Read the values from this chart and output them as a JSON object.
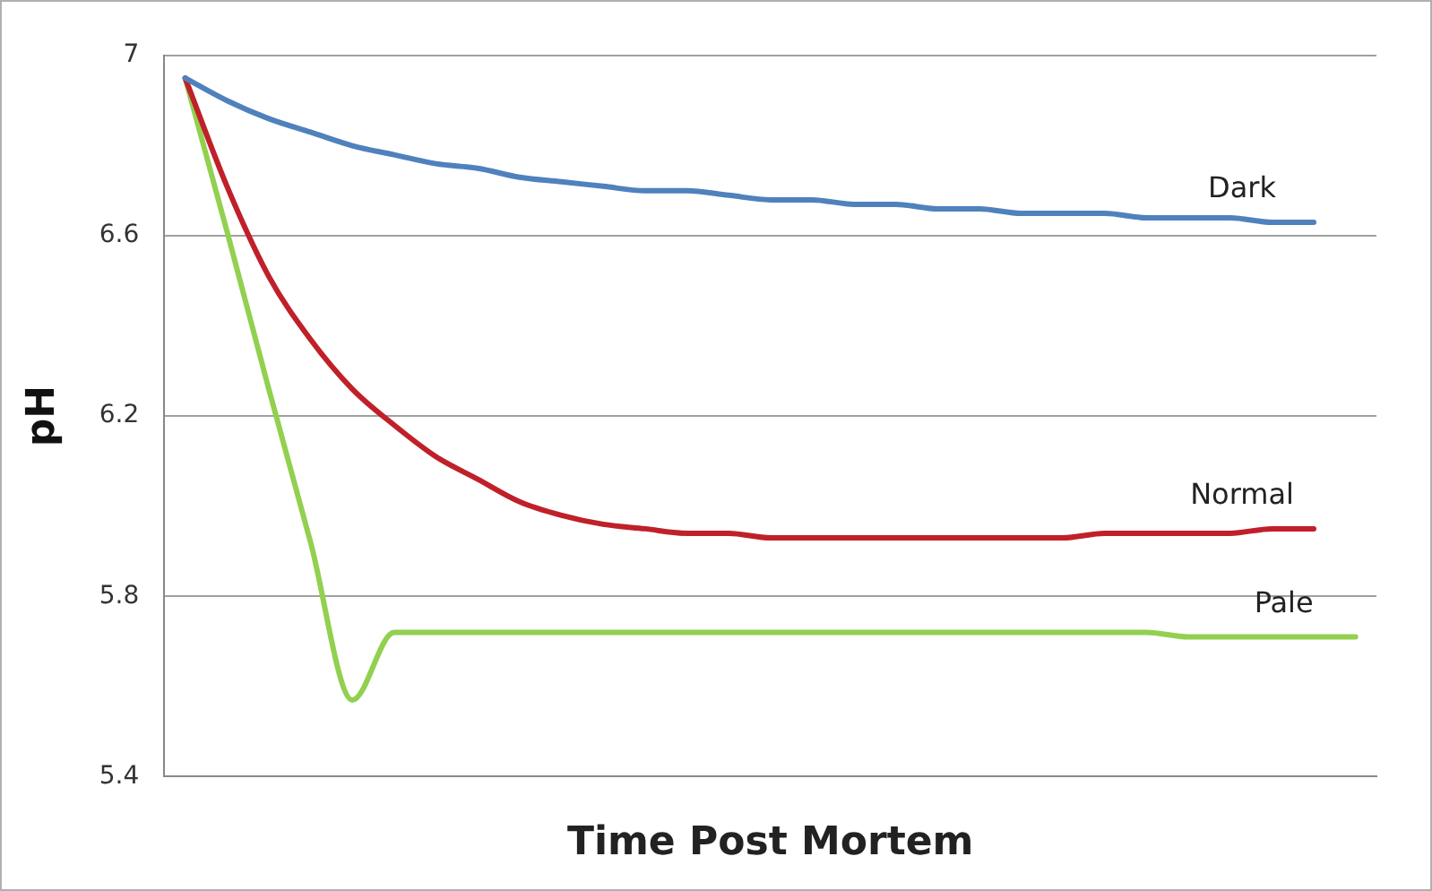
{
  "chart_data": {
    "type": "line",
    "xlabel": "Time Post Mortem",
    "ylabel": "pH",
    "categories": [
      null,
      null,
      null,
      null,
      null,
      null,
      null,
      null,
      null,
      null,
      null,
      null,
      null,
      null,
      null,
      null,
      null,
      null,
      null,
      null,
      null,
      null,
      null,
      null,
      null,
      null,
      null,
      null,
      null
    ],
    "ylim": [
      5.4,
      7
    ],
    "yticks": [
      5.4,
      5.8,
      6.2,
      6.6,
      7
    ],
    "grid": "y",
    "marker": "none",
    "line_style": "solid",
    "legend": false,
    "series": [
      {
        "name": "Dark",
        "color": "#4f81bd",
        "values": [
          6.95,
          6.9,
          6.86,
          6.83,
          6.8,
          6.78,
          6.76,
          6.75,
          6.73,
          6.72,
          6.71,
          6.7,
          6.7,
          6.69,
          6.68,
          6.68,
          6.67,
          6.67,
          6.66,
          6.66,
          6.65,
          6.65,
          6.65,
          6.64,
          6.64,
          6.64,
          6.63,
          6.63,
          null
        ]
      },
      {
        "name": "Normal",
        "color": "#c0202a",
        "values": [
          6.95,
          6.71,
          6.51,
          6.37,
          6.26,
          6.18,
          6.11,
          6.06,
          6.01,
          5.98,
          5.96,
          5.95,
          5.94,
          5.94,
          5.93,
          5.93,
          5.93,
          5.93,
          5.93,
          5.93,
          5.93,
          5.93,
          5.94,
          5.94,
          5.94,
          5.94,
          5.95,
          5.95,
          null
        ]
      },
      {
        "name": "Pale",
        "color": "#92d050",
        "values": [
          6.95,
          6.61,
          6.26,
          5.92,
          5.57,
          5.72,
          5.72,
          5.72,
          5.72,
          5.72,
          5.72,
          5.72,
          5.72,
          5.72,
          5.72,
          5.72,
          5.72,
          5.72,
          5.72,
          5.72,
          5.72,
          5.72,
          5.72,
          5.72,
          5.71,
          5.71,
          5.71,
          5.71,
          5.71
        ]
      }
    ]
  }
}
